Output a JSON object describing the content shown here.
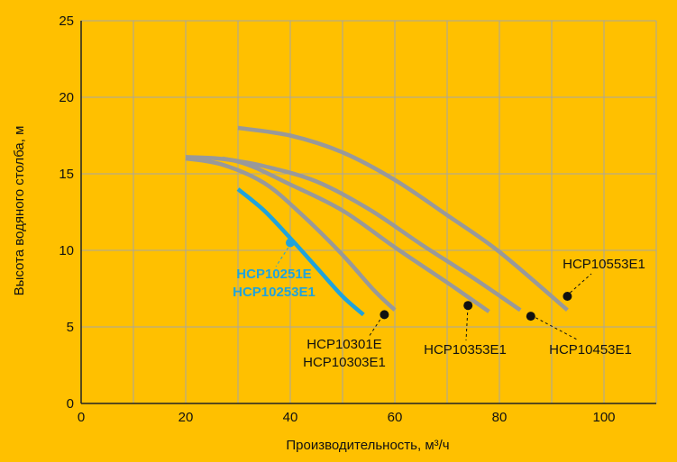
{
  "chart_data": {
    "type": "line",
    "xlabel": "Производительность, м³/ч",
    "ylabel": "Высота водяного столба, м",
    "xlim": [
      0,
      110
    ],
    "ylim": [
      0,
      25
    ],
    "x_ticks": [
      0,
      20,
      40,
      60,
      80,
      100
    ],
    "y_ticks": [
      0,
      5,
      10,
      15,
      20,
      25
    ],
    "grid": true,
    "background_color": "#FFC000",
    "grid_color": "#A6A6A6",
    "series_color": "#999999",
    "highlight_color": "#1FA3DC",
    "series": [
      {
        "color": "#1FA3DC",
        "x": [
          30,
          35,
          40,
          45,
          50,
          54
        ],
        "y": [
          14.0,
          12.6,
          10.8,
          8.9,
          7.0,
          5.8
        ]
      },
      {
        "color": "#999999",
        "x": [
          20,
          27,
          35,
          42,
          50,
          56,
          60
        ],
        "y": [
          16.0,
          15.6,
          14.4,
          12.4,
          9.7,
          7.4,
          6.1
        ]
      },
      {
        "color": "#999999",
        "x": [
          20,
          30,
          40,
          50,
          60,
          70,
          78
        ],
        "y": [
          16.1,
          15.8,
          14.3,
          12.6,
          10.2,
          7.9,
          6.0
        ]
      },
      {
        "color": "#999999",
        "x": [
          27,
          35,
          45,
          55,
          65,
          75,
          84
        ],
        "y": [
          16.0,
          15.5,
          14.5,
          12.7,
          10.4,
          8.2,
          6.1
        ]
      },
      {
        "color": "#999999",
        "x": [
          30,
          40,
          50,
          60,
          70,
          80,
          93
        ],
        "y": [
          18.0,
          17.5,
          16.4,
          14.6,
          12.3,
          9.9,
          6.1
        ]
      }
    ],
    "annotations": [
      {
        "lines": [
          "HCP10251E",
          "HCP10253E1"
        ],
        "color": "#1FA3DC",
        "bold": true,
        "x": 40,
        "y": 10.5
      },
      {
        "lines": [
          "HCP10301E",
          "HCP10303E1"
        ],
        "color": "#111111",
        "bold": false,
        "x": 58,
        "y": 5.8
      },
      {
        "lines": [
          "HCP10353E1"
        ],
        "color": "#111111",
        "bold": false,
        "x": 74,
        "y": 6.4
      },
      {
        "lines": [
          "HCP10453E1"
        ],
        "color": "#111111",
        "bold": false,
        "x": 86,
        "y": 5.7
      },
      {
        "lines": [
          "HCP10553E1"
        ],
        "color": "#111111",
        "bold": false,
        "x": 93,
        "y": 7.0
      }
    ]
  }
}
